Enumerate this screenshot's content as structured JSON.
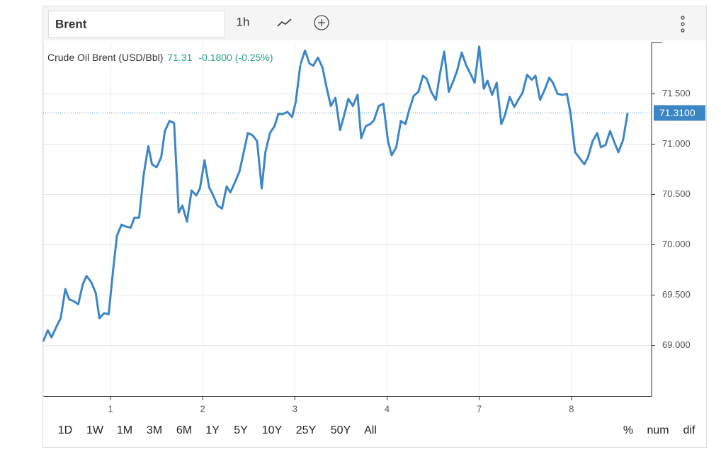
{
  "toolbar": {
    "symbol": "Brent",
    "interval": "1h"
  },
  "chart_data": {
    "type": "line",
    "series": [
      {
        "name": "Crude Oil Brent (USD/Bbl)",
        "color": "#3d86c6",
        "values": [
          69.04,
          69.15,
          69.08,
          69.18,
          69.27,
          69.56,
          69.46,
          69.44,
          69.41,
          69.61,
          69.69,
          69.63,
          69.52,
          69.27,
          69.32,
          69.31,
          69.76,
          70.09,
          70.2,
          70.18,
          70.17,
          70.27,
          70.27,
          70.7,
          70.98,
          70.8,
          70.77,
          70.87,
          71.13,
          71.23,
          71.21,
          70.32,
          70.39,
          70.23,
          70.54,
          70.49,
          70.56,
          70.84,
          70.57,
          70.5,
          70.39,
          70.36,
          70.58,
          70.52,
          70.62,
          70.73,
          70.94,
          71.11,
          71.09,
          71.03,
          70.56,
          70.92,
          71.11,
          71.18,
          71.3,
          71.3,
          71.32,
          71.27,
          71.42,
          71.79,
          71.93,
          71.8,
          71.78,
          71.86,
          71.76,
          71.58,
          71.38,
          71.46,
          71.14,
          71.27,
          71.45,
          71.38,
          71.49,
          71.06,
          71.18,
          71.2,
          71.24,
          71.38,
          71.4,
          71.03,
          70.89,
          70.97,
          71.23,
          71.2,
          71.34,
          71.48,
          71.52,
          71.68,
          71.65,
          71.52,
          71.44,
          71.68,
          71.92,
          71.52,
          71.63,
          71.73,
          71.91,
          71.78,
          71.69,
          71.61,
          71.97,
          71.55,
          71.63,
          71.49,
          71.61,
          71.2,
          71.29,
          71.47,
          71.37,
          71.45,
          71.51,
          71.69,
          71.64,
          71.68,
          71.44,
          71.54,
          71.66,
          71.61,
          71.5,
          71.49,
          71.5,
          71.31,
          70.92,
          70.86,
          70.8,
          70.87,
          71.03,
          71.11,
          70.97,
          70.99,
          71.13,
          71.01,
          70.92,
          71.04,
          71.31
        ]
      }
    ],
    "x": [
      0.27,
      0.32,
      0.36,
      0.41,
      0.46,
      0.51,
      0.55,
      0.6,
      0.65,
      0.7,
      0.74,
      0.79,
      0.84,
      0.88,
      0.93,
      0.98,
      1.03,
      1.07,
      1.12,
      1.17,
      1.22,
      1.26,
      1.31,
      1.36,
      1.41,
      1.45,
      1.5,
      1.55,
      1.59,
      1.64,
      1.69,
      1.74,
      1.78,
      1.83,
      1.88,
      1.93,
      1.97,
      2.02,
      2.07,
      2.11,
      2.16,
      2.21,
      2.26,
      2.3,
      2.35,
      2.4,
      2.45,
      2.49,
      2.54,
      2.59,
      2.64,
      2.68,
      2.73,
      2.78,
      2.82,
      2.87,
      2.92,
      2.97,
      3.01,
      3.06,
      3.11,
      3.16,
      3.2,
      3.25,
      3.3,
      3.34,
      3.39,
      3.44,
      3.49,
      3.53,
      3.58,
      3.63,
      3.68,
      3.72,
      3.77,
      3.82,
      3.86,
      3.91,
      3.96,
      4.01,
      4.05,
      4.1,
      4.15,
      4.2,
      4.24,
      4.29,
      4.34,
      4.39,
      4.43,
      4.48,
      4.53,
      4.57,
      4.62,
      4.67,
      4.72,
      4.76,
      4.81,
      4.86,
      4.91,
      4.95,
      5.0,
      5.05,
      5.09,
      5.14,
      5.19,
      5.24,
      5.28,
      5.33,
      5.38,
      5.43,
      5.47,
      5.52,
      5.57,
      5.61,
      5.66,
      5.71,
      5.76,
      5.8,
      5.85,
      5.9,
      5.95,
      5.99,
      6.04,
      6.09,
      6.14,
      6.18,
      6.23,
      6.28,
      6.32,
      6.37,
      6.42,
      6.47,
      6.51,
      6.56,
      6.61
    ],
    "xlim": [
      0.27,
      6.87
    ],
    "xticks": [
      1,
      2,
      3,
      4,
      {
        "value": 5,
        "label": "7"
      },
      {
        "value": 6,
        "label": "8"
      }
    ],
    "ylim": [
      68.49,
      72.01
    ],
    "yticks": [
      {
        "value": 69,
        "label": "69.000"
      },
      {
        "value": 69.5,
        "label": "69.500"
      },
      {
        "value": 70,
        "label": "70.000"
      },
      {
        "value": 70.5,
        "label": "70.500"
      },
      {
        "value": 71,
        "label": "71.000"
      },
      {
        "value": 71.5,
        "label": "71.500"
      }
    ],
    "grid": true,
    "last_value": 71.31,
    "change": "-0.1800 (-0.25%)",
    "change_color": "#26a08a",
    "last_price": {
      "value": 71.31,
      "label": "71.3100"
    },
    "ranges": [
      "1D",
      "1W",
      "1M",
      "3M",
      "6M",
      "1Y",
      "5Y",
      "10Y",
      "25Y",
      "50Y",
      "All"
    ],
    "active_range": "1M",
    "scale_modes": [
      "%",
      "num",
      "dif"
    ],
    "active_scale": "num",
    "active_color": "#3d86c6"
  }
}
